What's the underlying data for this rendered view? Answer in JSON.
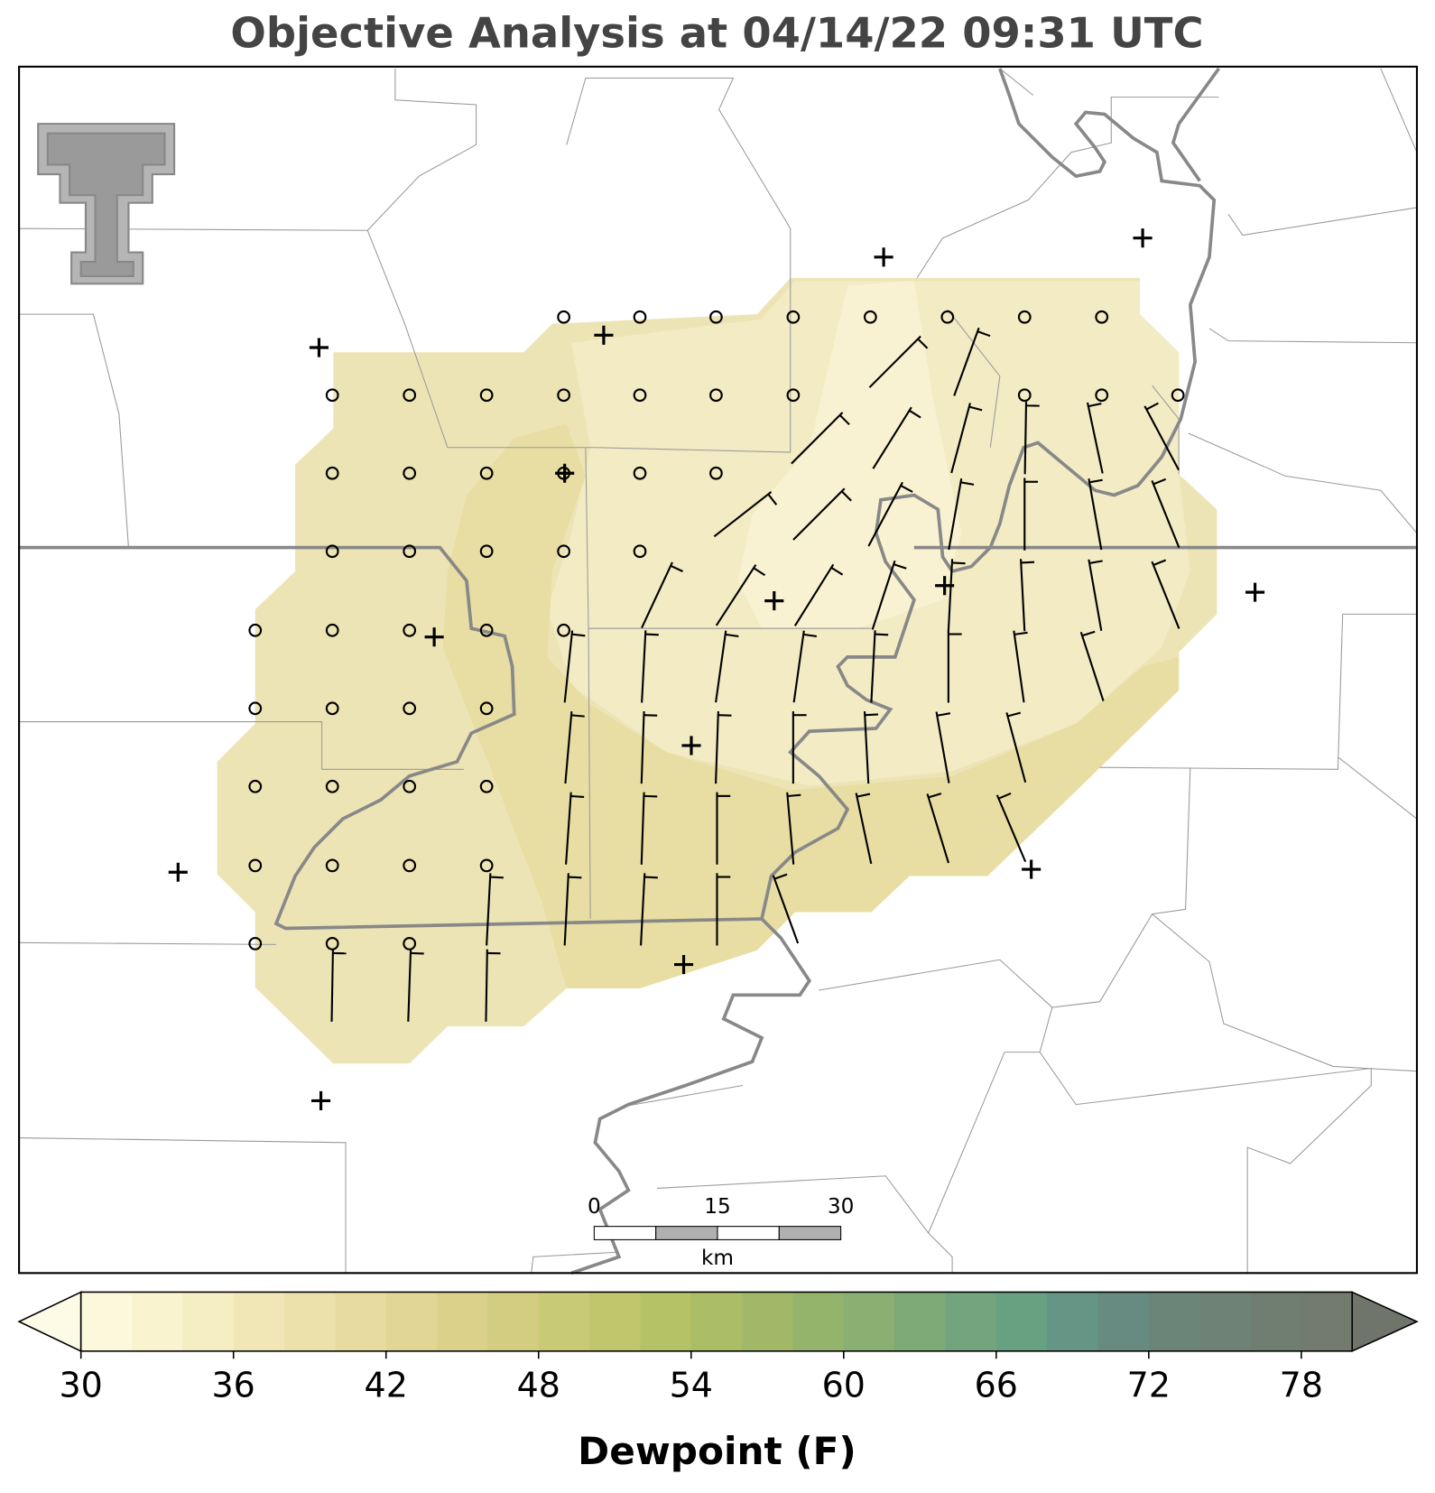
{
  "chart_data": {
    "type": "map",
    "title": "Objective Analysis at 04/14/22 09:31 UTC",
    "scale_bar": {
      "ticks": [
        0,
        15,
        30
      ],
      "unit": "km"
    },
    "colorbar": {
      "label": "Dewpoint (F)",
      "ticks": [
        30,
        36,
        42,
        48,
        54,
        60,
        66,
        72,
        78
      ],
      "boundaries": [
        30,
        32,
        34,
        36,
        38,
        40,
        42,
        44,
        46,
        48,
        50,
        52,
        54,
        56,
        58,
        60,
        62,
        64,
        66,
        68,
        70,
        72,
        74,
        76,
        78,
        80
      ],
      "colors": [
        "#fcf8dc",
        "#f9f3cf",
        "#f5eec3",
        "#f1e7b6",
        "#ece1aa",
        "#e7dba0",
        "#e1d695",
        "#dbd18b",
        "#d2cd80",
        "#c9ca76",
        "#bfc66c",
        "#b5c265",
        "#abbd65",
        "#a0b867",
        "#95b46b",
        "#89af72",
        "#7eaa78",
        "#73a47d",
        "#68a082",
        "#659685",
        "#678b80",
        "#6b8679",
        "#6e8375",
        "#707e71",
        "#727b6d"
      ],
      "under_color": "#fdfae6",
      "over_color": "#6f756b"
    }
  }
}
